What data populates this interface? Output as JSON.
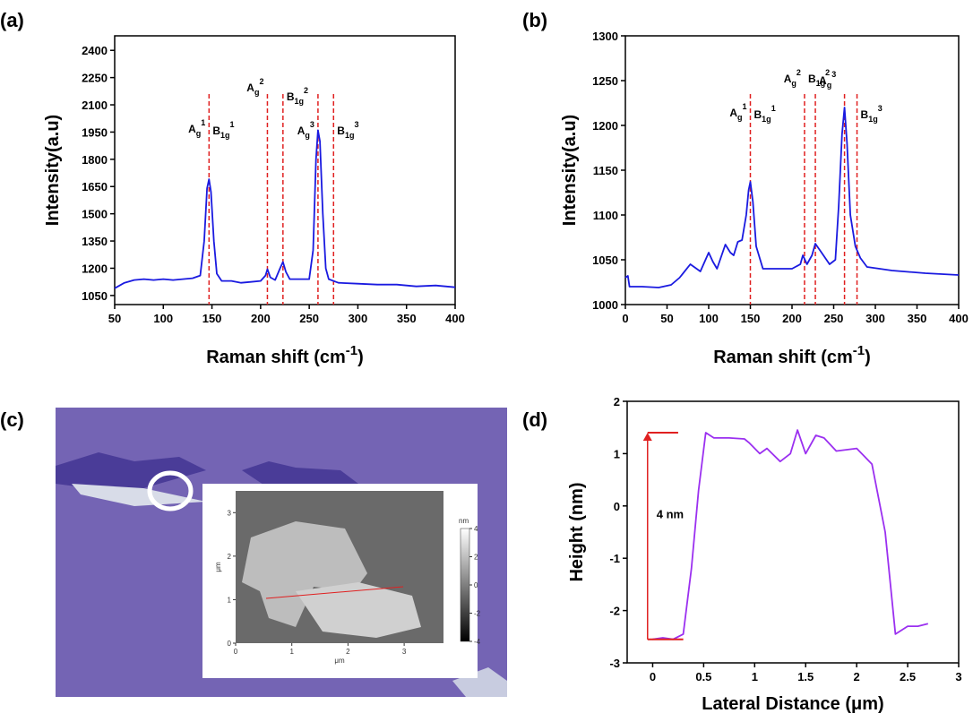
{
  "chart_data": [
    {
      "type": "line",
      "panel": "(a)",
      "xlabel": {
        "text": "Raman shift (cm",
        "sup": "-1",
        "tail": ")"
      },
      "ylabel": "Intensity(a.u)",
      "color": "#1a1ae0",
      "xlim": [
        50,
        400
      ],
      "ylim": [
        1000,
        2480
      ],
      "xticks": [
        50,
        100,
        150,
        200,
        250,
        300,
        350,
        400
      ],
      "yticks": [
        1050,
        1200,
        1350,
        1500,
        1650,
        1800,
        1950,
        2100,
        2250,
        2400
      ],
      "x": [
        50,
        60,
        70,
        80,
        90,
        100,
        110,
        120,
        130,
        138,
        142,
        145,
        147,
        149,
        152,
        155,
        160,
        170,
        180,
        190,
        200,
        205,
        207,
        210,
        215,
        220,
        223,
        226,
        230,
        250,
        254,
        257,
        259,
        261,
        264,
        267,
        270,
        280,
        300,
        320,
        340,
        360,
        380,
        400
      ],
      "values": [
        1090,
        1120,
        1135,
        1140,
        1135,
        1140,
        1135,
        1140,
        1145,
        1160,
        1350,
        1640,
        1690,
        1620,
        1350,
        1170,
        1130,
        1130,
        1120,
        1125,
        1130,
        1160,
        1195,
        1150,
        1135,
        1200,
        1235,
        1180,
        1140,
        1140,
        1300,
        1800,
        1960,
        1900,
        1500,
        1200,
        1140,
        1120,
        1115,
        1110,
        1110,
        1100,
        1105,
        1095
      ],
      "peak_lines": [
        147,
        207,
        223,
        259,
        275
      ],
      "line_color": "#e02020",
      "peak_labels": [
        {
          "base": "A",
          "sub": "g",
          "sup": "1"
        },
        {
          "base": "B",
          "sub": "1g",
          "sup": "1"
        },
        {
          "base": "A",
          "sub": "g",
          "sup": "2"
        },
        {
          "base": "B",
          "sub": "1g",
          "sup": "2"
        },
        {
          "base": "A",
          "sub": "g",
          "sup": "3"
        },
        {
          "base": "B",
          "sub": "1g",
          "sup": "3"
        }
      ]
    },
    {
      "type": "line",
      "panel": "(b)",
      "xlabel": {
        "text": "Raman shift (cm",
        "sup": "-1",
        "tail": ")"
      },
      "ylabel": "Intensity(a.u)",
      "color": "#1a1ae0",
      "xlim": [
        0,
        400
      ],
      "ylim": [
        1000,
        1300
      ],
      "xticks": [
        0,
        50,
        100,
        150,
        200,
        250,
        300,
        350,
        400
      ],
      "yticks": [
        1000,
        1050,
        1100,
        1150,
        1200,
        1250,
        1300
      ],
      "x": [
        0,
        3,
        5,
        20,
        40,
        55,
        65,
        78,
        90,
        100,
        105,
        110,
        120,
        126,
        130,
        135,
        140,
        145,
        148,
        150,
        153,
        157,
        165,
        180,
        200,
        210,
        213,
        218,
        224,
        228,
        234,
        245,
        252,
        256,
        260,
        263,
        266,
        270,
        276,
        282,
        290,
        320,
        360,
        400
      ],
      "values": [
        1030,
        1032,
        1020,
        1020,
        1019,
        1022,
        1030,
        1045,
        1037,
        1058,
        1048,
        1040,
        1067,
        1058,
        1055,
        1070,
        1072,
        1100,
        1128,
        1137,
        1115,
        1065,
        1040,
        1040,
        1040,
        1045,
        1055,
        1045,
        1055,
        1068,
        1060,
        1045,
        1050,
        1110,
        1190,
        1220,
        1180,
        1100,
        1065,
        1052,
        1042,
        1038,
        1035,
        1033
      ],
      "peak_lines": [
        150,
        215,
        228,
        263,
        278
      ],
      "line_color": "#e02020",
      "peak_labels": [
        {
          "base": "A",
          "sub": "g",
          "sup": "1"
        },
        {
          "base": "B",
          "sub": "1g",
          "sup": "1"
        },
        {
          "base": "A",
          "sub": "g",
          "sup": "2"
        },
        {
          "base": "B",
          "sub": "1g",
          "sup": "2"
        },
        {
          "base": "A",
          "sub": "g",
          "sup": "3"
        },
        {
          "base": "B",
          "sub": "1g",
          "sup": "3"
        }
      ]
    },
    {
      "type": "line",
      "panel": "(d)",
      "xlabel": "Lateral Distance (μm)",
      "ylabel": "Height (nm)",
      "color": "#9b30f0",
      "xlim": [
        -0.25,
        3
      ],
      "ylim": [
        -3,
        2
      ],
      "xticks": [
        0,
        0.5,
        1,
        1.5,
        2,
        2.5,
        3
      ],
      "yticks": [
        -3,
        -2,
        -1,
        0,
        1,
        2
      ],
      "x": [
        0,
        0.1,
        0.2,
        0.25,
        0.3,
        0.38,
        0.45,
        0.52,
        0.6,
        0.75,
        0.9,
        0.95,
        1.05,
        1.12,
        1.25,
        1.35,
        1.42,
        1.5,
        1.6,
        1.68,
        1.8,
        2.0,
        2.15,
        2.28,
        2.38,
        2.5,
        2.6,
        2.7
      ],
      "values": [
        -2.55,
        -2.52,
        -2.55,
        -2.5,
        -2.45,
        -1.2,
        0.3,
        1.4,
        1.3,
        1.3,
        1.28,
        1.2,
        1.0,
        1.1,
        0.85,
        1.0,
        1.45,
        1.0,
        1.35,
        1.3,
        1.05,
        1.1,
        0.8,
        -0.5,
        -2.45,
        -2.3,
        -2.3,
        -2.25
      ],
      "annotation": {
        "text": "4 nm",
        "x": -0.05,
        "y_from": -2.55,
        "y_to": 1.4,
        "color": "#e02020"
      }
    }
  ],
  "image_panel": {
    "panel": "(c)",
    "inset": {
      "xticks": [
        0,
        1,
        2,
        3
      ],
      "yticks": [
        0,
        1,
        2,
        3
      ],
      "xlabel": "μm",
      "ylabel": "μm",
      "colorbar_label": "nm",
      "colorbar_ticks": [
        4,
        2,
        0,
        -2,
        -4
      ]
    }
  }
}
